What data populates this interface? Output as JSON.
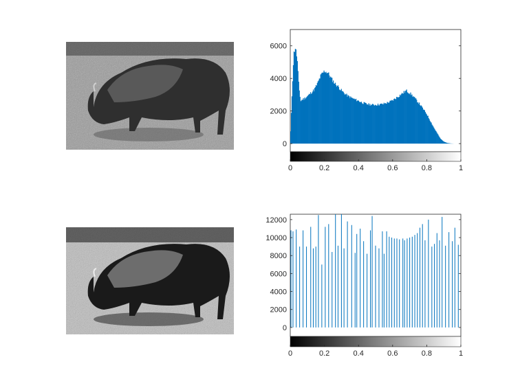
{
  "figure": {
    "top_left_image": "grayscale bison photo (original)",
    "bottom_left_image": "grayscale bison photo (histogram-equalized)"
  },
  "colors": {
    "bar": "#0072bd",
    "axis": "#262626",
    "background": "#ffffff"
  },
  "chart_data": [
    {
      "type": "bar",
      "title": "",
      "xlabel": "",
      "ylabel": "",
      "xlim": [
        0,
        1
      ],
      "ylim": [
        -500,
        7000
      ],
      "xticks": [
        0,
        0.2,
        0.4,
        0.6,
        0.8,
        1
      ],
      "xtick_labels": [
        "0",
        "0.2",
        "0.4",
        "0.6",
        "0.8",
        "1"
      ],
      "yticks": [
        0,
        2000,
        4000,
        6000
      ],
      "ytick_labels": [
        "0",
        "2000",
        "4000",
        "6000"
      ],
      "colorbar": "grayscale 0 (black) to 1 (white) under x-axis",
      "control_points_x": [
        0.0,
        0.01,
        0.02,
        0.03,
        0.04,
        0.05,
        0.06,
        0.07,
        0.08,
        0.1,
        0.12,
        0.14,
        0.16,
        0.18,
        0.2,
        0.22,
        0.24,
        0.26,
        0.28,
        0.3,
        0.32,
        0.34,
        0.36,
        0.38,
        0.4,
        0.42,
        0.44,
        0.46,
        0.48,
        0.5,
        0.52,
        0.54,
        0.56,
        0.58,
        0.6,
        0.62,
        0.64,
        0.66,
        0.68,
        0.7,
        0.72,
        0.74,
        0.76,
        0.78,
        0.8,
        0.82,
        0.84,
        0.86,
        0.88,
        0.9,
        0.92,
        0.94,
        0.96,
        0.98,
        1.0
      ],
      "control_points_y": [
        200,
        3000,
        5500,
        5900,
        5200,
        3500,
        2600,
        2700,
        2750,
        2900,
        3100,
        3300,
        3700,
        4200,
        4450,
        4350,
        4000,
        3700,
        3500,
        3250,
        3050,
        2900,
        2800,
        2700,
        2620,
        2520,
        2450,
        2400,
        2380,
        2380,
        2400,
        2420,
        2480,
        2550,
        2650,
        2800,
        2950,
        3100,
        3250,
        3100,
        2900,
        2650,
        2400,
        2100,
        1800,
        1400,
        1000,
        650,
        300,
        120,
        40,
        10,
        0,
        0,
        0
      ]
    },
    {
      "type": "bar",
      "title": "",
      "xlabel": "",
      "ylabel": "",
      "xlim": [
        0,
        1
      ],
      "ylim": [
        -1000,
        12600
      ],
      "xticks": [
        0,
        0.2,
        0.4,
        0.6,
        0.8,
        1
      ],
      "xtick_labels": [
        "0",
        "0.2",
        "0.4",
        "0.6",
        "0.8",
        "1"
      ],
      "yticks": [
        0,
        2000,
        4000,
        6000,
        8000,
        10000,
        12000
      ],
      "ytick_labels": [
        "0",
        "2000",
        "4000",
        "6000",
        "8000",
        "10000",
        "12000"
      ],
      "colorbar": "grayscale 0 (black) to 1 (white) under x-axis",
      "x": [
        0.004,
        0.016,
        0.035,
        0.055,
        0.075,
        0.095,
        0.12,
        0.135,
        0.15,
        0.165,
        0.185,
        0.205,
        0.225,
        0.245,
        0.265,
        0.28,
        0.3,
        0.315,
        0.335,
        0.36,
        0.38,
        0.39,
        0.41,
        0.43,
        0.45,
        0.47,
        0.48,
        0.5,
        0.52,
        0.54,
        0.55,
        0.565,
        0.58,
        0.595,
        0.61,
        0.625,
        0.64,
        0.66,
        0.67,
        0.685,
        0.7,
        0.715,
        0.73,
        0.745,
        0.76,
        0.775,
        0.79,
        0.81,
        0.83,
        0.845,
        0.86,
        0.875,
        0.89,
        0.91,
        0.93,
        0.95,
        0.965,
        0.985
      ],
      "y": [
        10800,
        10700,
        10900,
        9000,
        10800,
        9000,
        11200,
        8800,
        9000,
        12500,
        7000,
        11200,
        11500,
        8400,
        12600,
        9100,
        12600,
        8800,
        11800,
        11400,
        8300,
        10400,
        11000,
        9600,
        8200,
        10800,
        12400,
        9100,
        8800,
        10700,
        8200,
        10700,
        10100,
        10000,
        9900,
        9900,
        9800,
        9900,
        9700,
        9900,
        10000,
        10100,
        10300,
        10500,
        11100,
        11500,
        9700,
        12000,
        9000,
        9300,
        10500,
        9700,
        12300,
        9100,
        10600,
        9600,
        11100,
        9200
      ]
    }
  ]
}
